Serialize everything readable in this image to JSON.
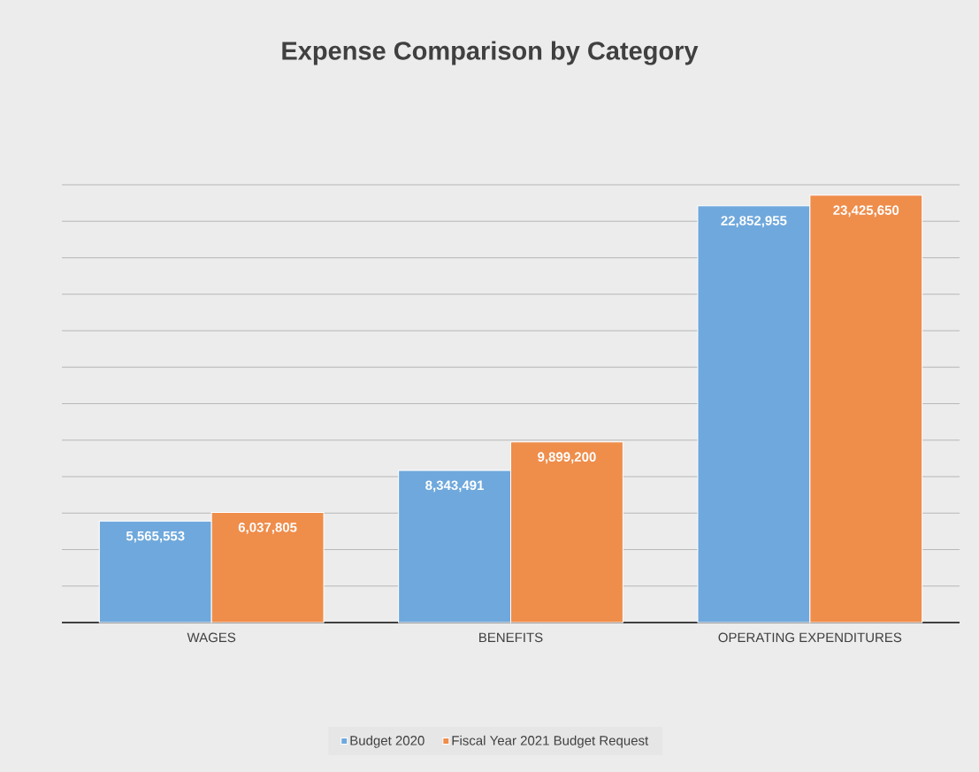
{
  "chart_data": {
    "type": "bar",
    "title": "Expense Comparison by Category",
    "categories": [
      "WAGES",
      "BENEFITS",
      "OPERATING EXPENDITURES"
    ],
    "series": [
      {
        "name": "Budget 2020",
        "color": "#6fa8dc",
        "values": [
          5565553,
          8343491,
          22852955
        ],
        "value_labels": [
          "5,565,553",
          "8,343,491",
          "22,852,955"
        ]
      },
      {
        "name": "Fiscal Year 2021 Budget Request",
        "color": "#ef8d4b",
        "values": [
          6037805,
          9899200,
          23425650
        ],
        "value_labels": [
          "6,037,805",
          "9,899,200",
          "23,425,650"
        ]
      }
    ],
    "tick_labels": "x",
    "grid": "y",
    "legend": "bottom"
  }
}
